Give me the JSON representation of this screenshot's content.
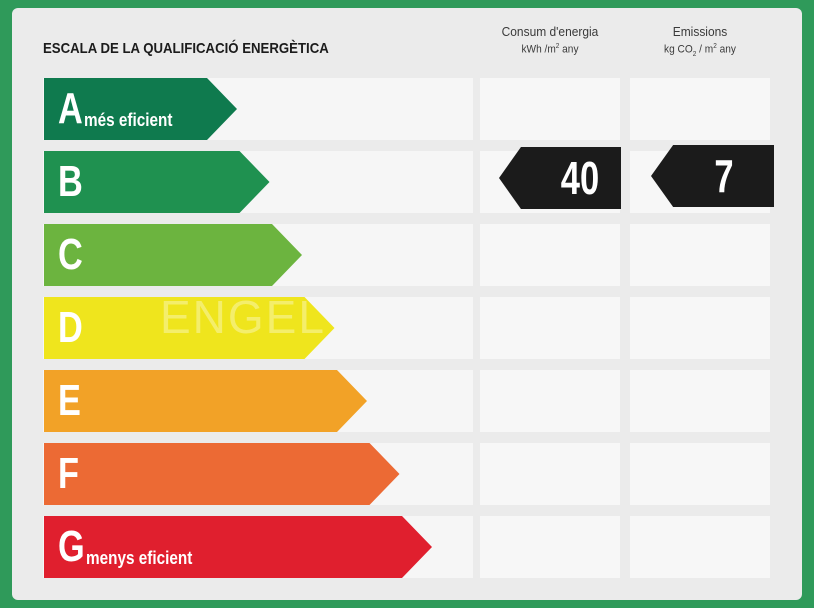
{
  "title": "ESCALA DE LA QUALIFICACIÓ ENERGÈTICA",
  "columns": {
    "consumption": {
      "line1": "Consum d'energia",
      "unit_a": "kWh /m",
      "unit_sup": "2",
      "unit_b": " any"
    },
    "emissions": {
      "line1": "Emissions",
      "unit_a": "kg CO",
      "unit_sub": "2",
      "unit_b": " / m",
      "unit_sup": "2",
      "unit_c": " any"
    }
  },
  "classes": [
    {
      "letter": "A",
      "desc": "més eficient",
      "color": "#0f7a4e"
    },
    {
      "letter": "B",
      "desc": "",
      "color": "#1f9150"
    },
    {
      "letter": "C",
      "desc": "",
      "color": "#6cb43f"
    },
    {
      "letter": "D",
      "desc": "",
      "color": "#efe51d"
    },
    {
      "letter": "E",
      "desc": "",
      "color": "#f2a227"
    },
    {
      "letter": "F",
      "desc": "",
      "color": "#ec6a34"
    },
    {
      "letter": "G",
      "desc": "menys eficient",
      "color": "#e01f2e"
    }
  ],
  "rating": {
    "class": "B",
    "consumption_value": "40",
    "emissions_value": "7"
  },
  "watermark": "ENGEL"
}
